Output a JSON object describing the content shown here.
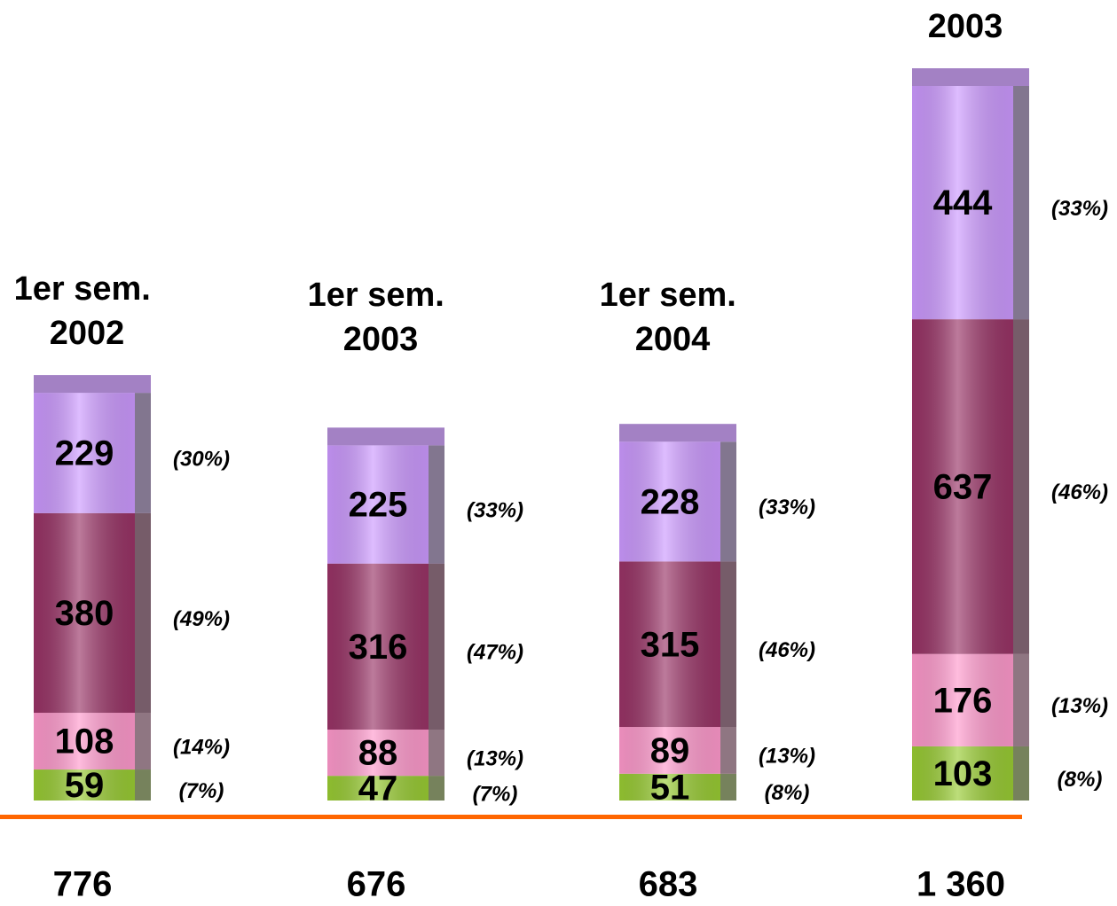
{
  "chart_data": {
    "type": "stacked_bar",
    "categories": [
      "1er sem. 2002",
      "1er sem. 2003",
      "1er sem. 2004",
      "2003"
    ],
    "series": [
      {
        "color": "#99cc33",
        "values": [
          59,
          47,
          51,
          103
        ],
        "share_labels": [
          "(7%)",
          "(7%)",
          "(8%)",
          "(8%)"
        ],
        "shares": [
          7,
          7,
          8,
          8
        ]
      },
      {
        "color": "#ff99cc",
        "values": [
          108,
          88,
          89,
          176
        ],
        "share_labels": [
          "(14%)",
          "(13%)",
          "(13%)",
          "(13%)"
        ],
        "shares": [
          14,
          13,
          13,
          13
        ]
      },
      {
        "color": "#993366",
        "values": [
          380,
          316,
          315,
          637
        ],
        "share_labels": [
          "(49%)",
          "(47%)",
          "(46%)",
          "(46%)"
        ],
        "shares": [
          49,
          47,
          46,
          46
        ]
      },
      {
        "color": "#cc99ff",
        "values": [
          229,
          225,
          228,
          444
        ],
        "share_labels": [
          "(30%)",
          "(33%)",
          "(33%)",
          "(33%)"
        ],
        "shares": [
          30,
          33,
          33,
          33
        ]
      }
    ],
    "totals": [
      776,
      676,
      683,
      1360
    ],
    "total_labels": [
      "776",
      "676",
      "683",
      "1 360"
    ],
    "baseline_color": "#ff6600"
  }
}
